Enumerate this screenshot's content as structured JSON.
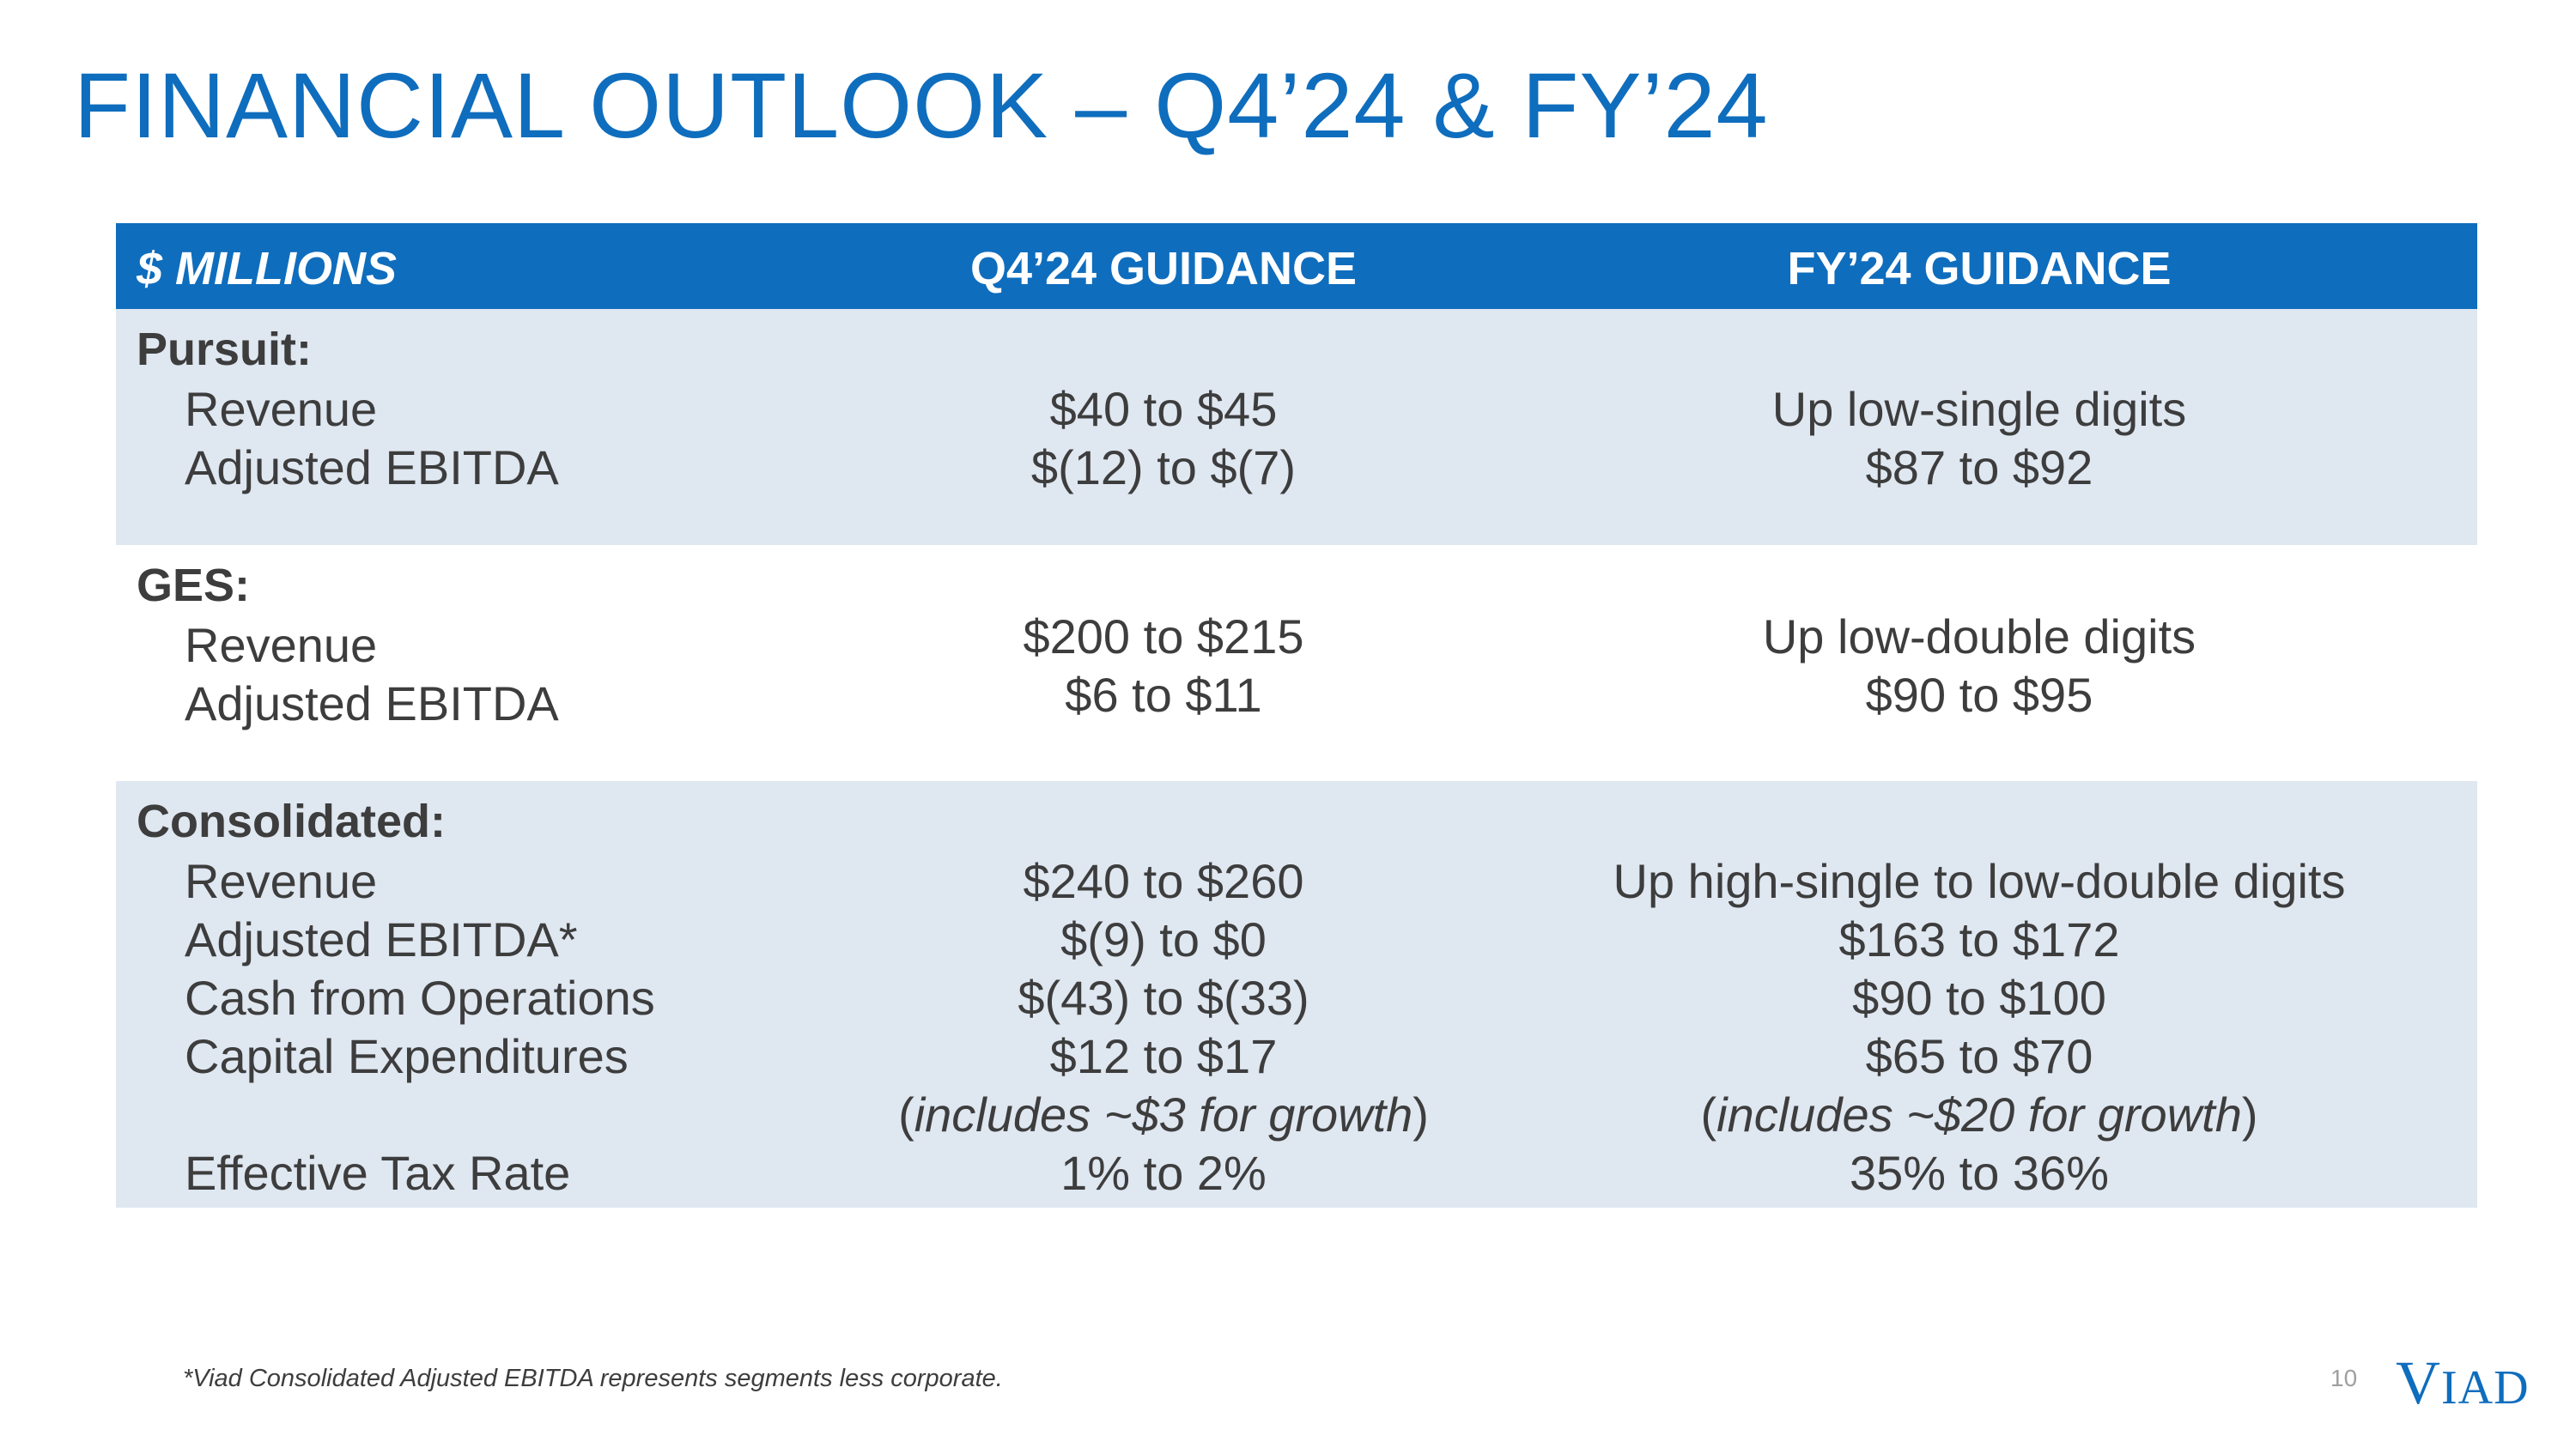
{
  "title": "FINANCIAL OUTLOOK – Q4’24 & FY’24",
  "header": {
    "col0": "$ MILLIONS",
    "col1": "Q4’24 GUIDANCE",
    "col2": "FY’24 GUIDANCE"
  },
  "pursuit": {
    "label": "Pursuit:",
    "revenue_label": "Revenue",
    "revenue_q4": "$40 to $45",
    "revenue_fy": "Up low-single digits",
    "ebitda_label": "Adjusted EBITDA",
    "ebitda_q4": "$(12) to $(7)",
    "ebitda_fy": "$87 to $92"
  },
  "ges": {
    "label": "GES:",
    "revenue_label": "Revenue",
    "revenue_q4": "$200 to $215",
    "revenue_fy": "Up low-double digits",
    "ebitda_label": "Adjusted EBITDA",
    "ebitda_q4": "$6 to $11",
    "ebitda_fy": "$90 to $95"
  },
  "consolidated": {
    "label": "Consolidated:",
    "revenue_label": "Revenue",
    "revenue_q4": "$240 to $260",
    "revenue_fy": "Up high-single to low-double digits",
    "ebitda_label": "Adjusted EBITDA*",
    "ebitda_q4": "$(9) to $0",
    "ebitda_fy": "$163 to $172",
    "cfo_label": "Cash from Operations",
    "cfo_q4": "$(43) to $(33)",
    "cfo_fy": "$90 to $100",
    "capex_label": "Capital Expenditures",
    "capex_q4": "$12 to $17",
    "capex_fy": "$65 to $70",
    "capex_note_q4": "includes ~$3 for growth",
    "capex_note_fy": "includes ~$20 for growth",
    "tax_label": "Effective Tax Rate",
    "tax_q4": "1% to 2%",
    "tax_fy": "35% to 36%"
  },
  "footnote": "*Viad Consolidated Adjusted EBITDA represents segments less corporate.",
  "page_number": "10",
  "logo_text": {
    "first": "V",
    "rest": "IAD"
  },
  "colors": {
    "brand_blue": "#0f6dbd",
    "row_shade": "#dfe7f1",
    "text": "#3d3d3d"
  }
}
